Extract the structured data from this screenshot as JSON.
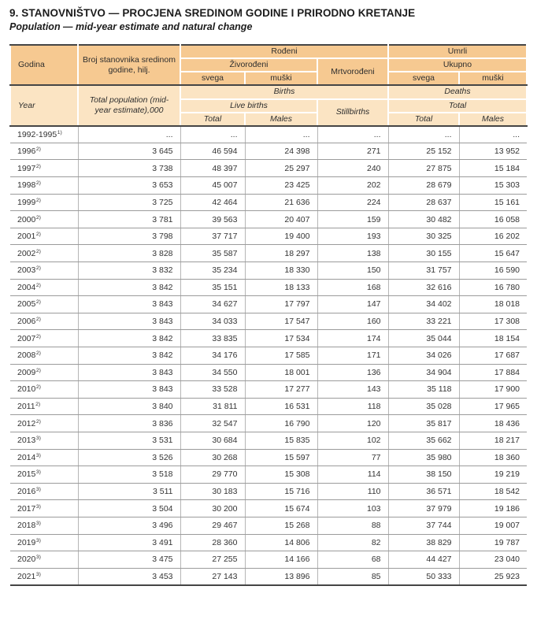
{
  "title": "9. STANOVNIŠTVO — PROCJENA SREDINOM GODINE I PRIRODNO KRETANJE",
  "subtitle": "Population — mid-year estimate and natural change",
  "colors": {
    "header_bg": "#f6c991",
    "header_bg_light": "#fbe4c3",
    "dark_rule": "#454545",
    "row_rule": "#9b9b9b",
    "column_rule": "#b6b6b6",
    "text": "#303030"
  },
  "table": {
    "header_bs": {
      "godina": "Godina",
      "broj_stanovnika": "Broj stanovnika sredinom godine, hilj.",
      "rodjeni": "Rođeni",
      "zivorodjeni": "Živorođeni",
      "mrtvorodjeni": "Mrtvorođeni",
      "svega_rodjeni": "svega",
      "muski_rodjeni": "muški",
      "umrli": "Umrli",
      "ukupno": "Ukupno",
      "svega_umrli": "svega",
      "muski_umrli": "muški"
    },
    "header_en": {
      "year": "Year",
      "total_population": "Total population (mid-year estimate),000",
      "births": "Births",
      "live_births": "Live births",
      "stillbirths": "Stillbirths",
      "total_live": "Total",
      "males_live": "Males",
      "deaths": "Deaths",
      "total_deaths": "Total",
      "total_d": "Total",
      "males_d": "Males"
    },
    "rows": [
      {
        "year": "1992-1995",
        "note": "1)",
        "values": [
          "...",
          "...",
          "...",
          "...",
          "...",
          "..."
        ]
      },
      {
        "year": "1996",
        "note": "2)",
        "values": [
          "3 645",
          "46 594",
          "24 398",
          "271",
          "25 152",
          "13 952"
        ]
      },
      {
        "year": "1997",
        "note": "2)",
        "values": [
          "3 738",
          "48 397",
          "25 297",
          "240",
          "27 875",
          "15 184"
        ]
      },
      {
        "year": "1998",
        "note": "2)",
        "values": [
          "3 653",
          "45 007",
          "23 425",
          "202",
          "28 679",
          "15 303"
        ]
      },
      {
        "year": "1999",
        "note": "2)",
        "values": [
          "3 725",
          "42 464",
          "21 636",
          "224",
          "28 637",
          "15 161"
        ]
      },
      {
        "year": "2000",
        "note": "2)",
        "values": [
          "3 781",
          "39 563",
          "20 407",
          "159",
          "30 482",
          "16 058"
        ]
      },
      {
        "year": "2001",
        "note": "2)",
        "values": [
          "3 798",
          "37 717",
          "19 400",
          "193",
          "30 325",
          "16 202"
        ]
      },
      {
        "year": "2002",
        "note": "2)",
        "values": [
          "3 828",
          "35 587",
          "18 297",
          "138",
          "30 155",
          "15 647"
        ]
      },
      {
        "year": "2003",
        "note": "2)",
        "values": [
          "3 832",
          "35 234",
          "18 330",
          "150",
          "31 757",
          "16 590"
        ]
      },
      {
        "year": "2004",
        "note": "2)",
        "values": [
          "3 842",
          "35 151",
          "18 133",
          "168",
          "32 616",
          "16 780"
        ]
      },
      {
        "year": "2005",
        "note": "2)",
        "values": [
          "3 843",
          "34 627",
          "17 797",
          "147",
          "34 402",
          "18 018"
        ]
      },
      {
        "year": "2006",
        "note": "2)",
        "values": [
          "3 843",
          "34 033",
          "17 547",
          "160",
          "33 221",
          "17 308"
        ]
      },
      {
        "year": "2007",
        "note": "2)",
        "values": [
          "3 842",
          "33 835",
          "17 534",
          "174",
          "35 044",
          "18 154"
        ]
      },
      {
        "year": "2008",
        "note": "2)",
        "values": [
          "3 842",
          "34 176",
          "17 585",
          "171",
          "34 026",
          "17 687"
        ]
      },
      {
        "year": "2009",
        "note": "2)",
        "values": [
          "3 843",
          "34 550",
          "18 001",
          "136",
          "34 904",
          "17 884"
        ]
      },
      {
        "year": "2010",
        "note": "2)",
        "values": [
          "3 843",
          "33 528",
          "17 277",
          "143",
          "35 118",
          "17 900"
        ]
      },
      {
        "year": "2011",
        "note": "2)",
        "values": [
          "3 840",
          "31 811",
          "16 531",
          "118",
          "35 028",
          "17 965"
        ]
      },
      {
        "year": "2012",
        "note": "2)",
        "values": [
          "3 836",
          "32 547",
          "16 790",
          "120",
          "35 817",
          "18 436"
        ]
      },
      {
        "year": "2013",
        "note": "3)",
        "values": [
          "3 531",
          "30 684",
          "15 835",
          "102",
          "35 662",
          "18 217"
        ]
      },
      {
        "year": "2014",
        "note": "3)",
        "values": [
          "3 526",
          "30 268",
          "15 597",
          "77",
          "35 980",
          "18 360"
        ]
      },
      {
        "year": "2015",
        "note": "3)",
        "values": [
          "3 518",
          "29 770",
          "15 308",
          "114",
          "38 150",
          "19 219"
        ]
      },
      {
        "year": "2016",
        "note": "3)",
        "values": [
          "3 511",
          "30 183",
          "15 716",
          "110",
          "36 571",
          "18 542"
        ]
      },
      {
        "year": "2017",
        "note": "3)",
        "values": [
          "3 504",
          "30 200",
          "15 674",
          "103",
          "37 979",
          "19 186"
        ]
      },
      {
        "year": "2018",
        "note": "3)",
        "values": [
          "3 496",
          "29 467",
          "15 268",
          "88",
          "37 744",
          "19 007"
        ]
      },
      {
        "year": "2019",
        "note": "3)",
        "values": [
          "3 491",
          "28 360",
          "14 806",
          "82",
          "38 829",
          "19 787"
        ]
      },
      {
        "year": "2020",
        "note": "3)",
        "values": [
          "3 475",
          "27 255",
          "14 166",
          "68",
          "44 427",
          "23 040"
        ]
      },
      {
        "year": "2021",
        "note": "3)",
        "values": [
          "3 453",
          "27 143",
          "13 896",
          "85",
          "50 333",
          "25 923"
        ]
      }
    ]
  }
}
